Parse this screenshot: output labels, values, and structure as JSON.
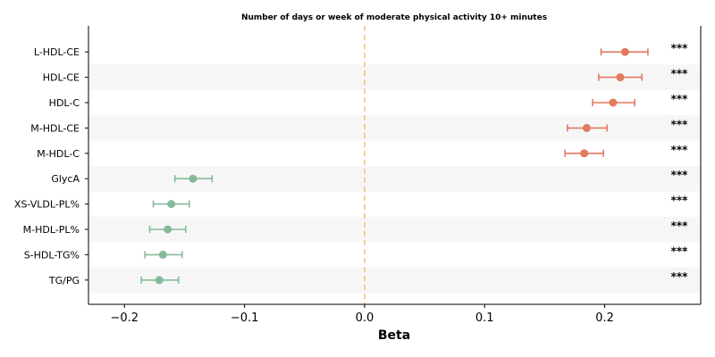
{
  "chart_data": {
    "type": "forest",
    "title": "Number of days or week of moderate physical activity 10+ minutes",
    "xlabel": "Beta",
    "xlim": [
      -0.23,
      0.28
    ],
    "xticks": [
      -0.2,
      -0.1,
      0.0,
      0.1,
      0.2
    ],
    "xtick_labels": [
      "−0.2",
      "−0.1",
      "0.0",
      "0.1",
      "0.2"
    ],
    "reference_line": 0.0,
    "alternating_row_shading": true,
    "colors": {
      "positive": "#e07b5f",
      "negative": "#86b99a",
      "reference_line": "#f2c57c",
      "row_shade": "#f6f6f6"
    },
    "rows": [
      {
        "label": "L-HDL-CE",
        "beta": 0.217,
        "ci_low": 0.197,
        "ci_high": 0.236,
        "sig": "***"
      },
      {
        "label": "HDL-CE",
        "beta": 0.213,
        "ci_low": 0.195,
        "ci_high": 0.231,
        "sig": "***"
      },
      {
        "label": "HDL-C",
        "beta": 0.207,
        "ci_low": 0.19,
        "ci_high": 0.225,
        "sig": "***"
      },
      {
        "label": "M-HDL-CE",
        "beta": 0.185,
        "ci_low": 0.169,
        "ci_high": 0.202,
        "sig": "***"
      },
      {
        "label": "M-HDL-C",
        "beta": 0.183,
        "ci_low": 0.167,
        "ci_high": 0.199,
        "sig": "***"
      },
      {
        "label": "GlycA",
        "beta": -0.143,
        "ci_low": -0.158,
        "ci_high": -0.127,
        "sig": "***"
      },
      {
        "label": "XS-VLDL-PL%",
        "beta": -0.161,
        "ci_low": -0.176,
        "ci_high": -0.146,
        "sig": "***"
      },
      {
        "label": "M-HDL-PL%",
        "beta": -0.164,
        "ci_low": -0.179,
        "ci_high": -0.149,
        "sig": "***"
      },
      {
        "label": "S-HDL-TG%",
        "beta": -0.168,
        "ci_low": -0.183,
        "ci_high": -0.152,
        "sig": "***"
      },
      {
        "label": "TG/PG",
        "beta": -0.171,
        "ci_low": -0.186,
        "ci_high": -0.155,
        "sig": "***"
      }
    ]
  }
}
